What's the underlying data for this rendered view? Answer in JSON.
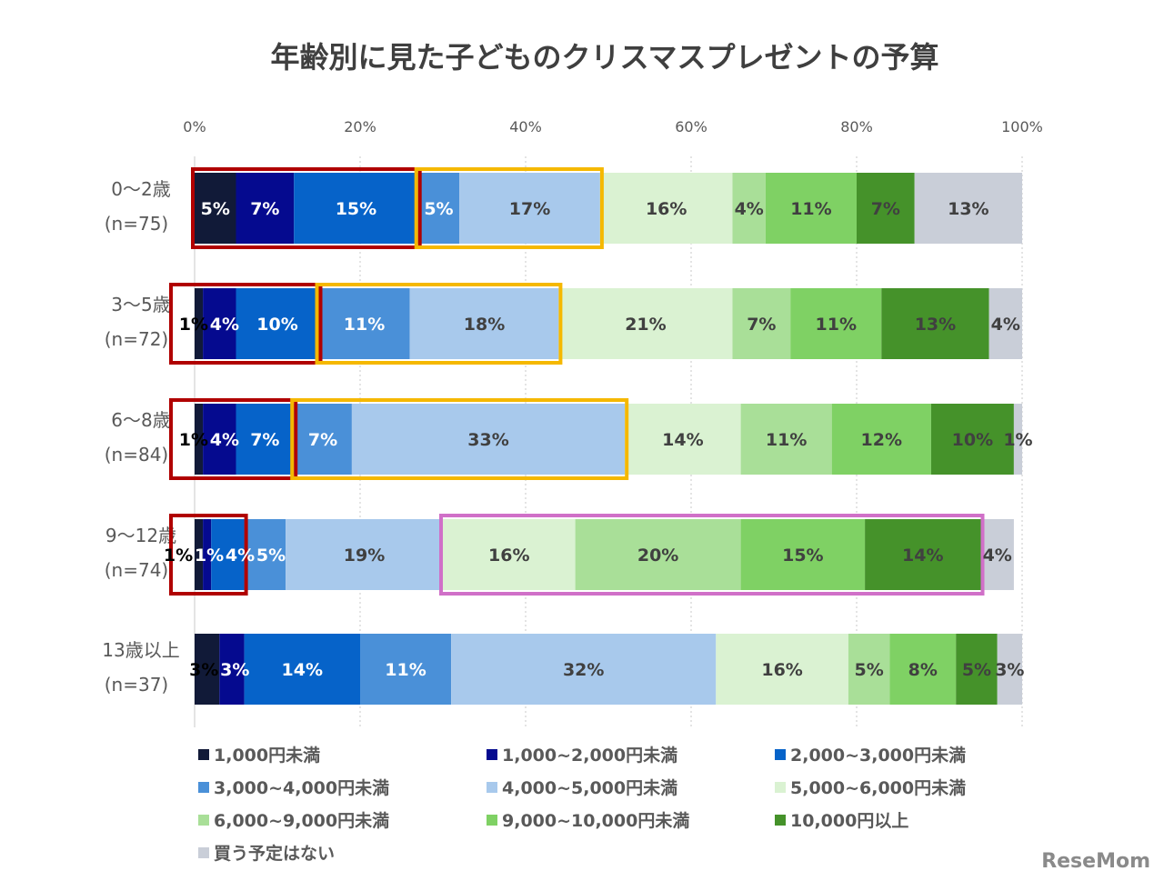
{
  "chart_data": {
    "type": "bar",
    "orientation": "horizontal-stacked-100",
    "title": "年齢別に見た子どものクリスマスプレゼントの予算",
    "xlim": [
      0,
      100
    ],
    "x_ticks": [
      "0%",
      "20%",
      "40%",
      "60%",
      "80%",
      "100%"
    ],
    "grid": "vertical dotted",
    "legend_placement": "bottom",
    "categories": [
      {
        "name": "0〜2歳",
        "n": "(n=75)"
      },
      {
        "name": "3〜5歳",
        "n": "(n=72)"
      },
      {
        "name": "6〜8歳",
        "n": "(n=84)"
      },
      {
        "name": "9〜12歳",
        "n": "(n=74)"
      },
      {
        "name": "13歳以上",
        "n": "(n=37)"
      }
    ],
    "series": [
      {
        "name": "1,000円未満",
        "color": "#111a38",
        "values": [
          5,
          1,
          1,
          1,
          3
        ]
      },
      {
        "name": "1,000~2,000円未満",
        "color": "#050a8f",
        "values": [
          7,
          4,
          4,
          1,
          3
        ]
      },
      {
        "name": "2,000~3,000円未満",
        "color": "#0663c9",
        "values": [
          15,
          10,
          7,
          4,
          14
        ]
      },
      {
        "name": "3,000~4,000円未満",
        "color": "#4a90d8",
        "values": [
          5,
          11,
          7,
          5,
          11
        ]
      },
      {
        "name": "4,000~5,000円未満",
        "color": "#a8c9ec",
        "values": [
          17,
          18,
          33,
          19,
          32
        ]
      },
      {
        "name": "5,000~6,000円未満",
        "color": "#daf2d2",
        "values": [
          16,
          21,
          14,
          16,
          16
        ]
      },
      {
        "name": "6,000~9,000円未満",
        "color": "#a9df98",
        "values": [
          4,
          7,
          11,
          20,
          5
        ]
      },
      {
        "name": "9,000~10,000円未満",
        "color": "#7fd164",
        "values": [
          11,
          11,
          12,
          15,
          8
        ]
      },
      {
        "name": "10,000円以上",
        "color": "#45922a",
        "values": [
          7,
          13,
          10,
          14,
          5
        ]
      },
      {
        "name": "買う予定はない",
        "color": "#c9ced8",
        "values": [
          13,
          4,
          1,
          4,
          3
        ]
      }
    ],
    "highlights": [
      {
        "row": 0,
        "from": 0,
        "to": 2,
        "color": "#b00000"
      },
      {
        "row": 0,
        "from": 3,
        "to": 4,
        "color": "#f5b800"
      },
      {
        "row": 1,
        "from": 0,
        "to": 2,
        "color": "#b00000"
      },
      {
        "row": 1,
        "from": 3,
        "to": 4,
        "color": "#f5b800"
      },
      {
        "row": 2,
        "from": 0,
        "to": 2,
        "color": "#b00000"
      },
      {
        "row": 2,
        "from": 3,
        "to": 4,
        "color": "#f5b800"
      },
      {
        "row": 3,
        "from": 0,
        "to": 2,
        "color": "#b00000"
      },
      {
        "row": 3,
        "from": 5,
        "to": 8,
        "color": "#d070c8"
      }
    ]
  },
  "logo": "ReseMom"
}
